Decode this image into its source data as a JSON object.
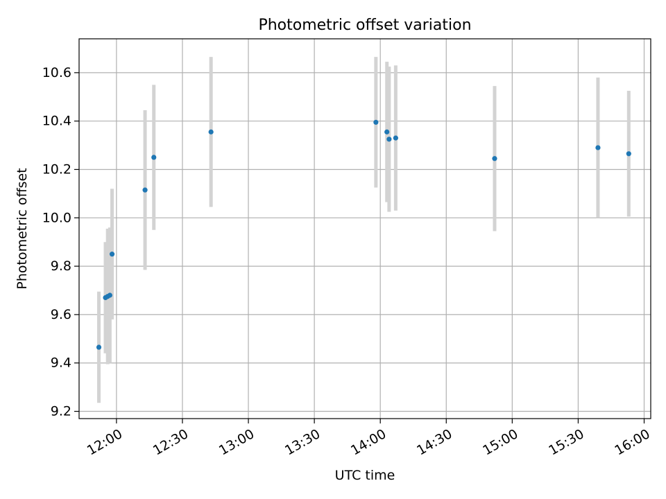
{
  "chart_data": {
    "type": "scatter",
    "title": "Photometric offset variation",
    "xlabel": "UTC time",
    "ylabel": "Photometric offset",
    "xlim": [
      "11:43",
      "16:03"
    ],
    "ylim": [
      9.17,
      10.74
    ],
    "grid": true,
    "x_ticks": [
      "12:00",
      "12:30",
      "13:00",
      "13:30",
      "14:00",
      "14:30",
      "15:00",
      "15:30",
      "16:00"
    ],
    "y_ticks": [
      9.2,
      9.4,
      9.6,
      9.8,
      10.0,
      10.2,
      10.4,
      10.6
    ],
    "series": [
      {
        "point_color": "#1f77b4",
        "errorbar_color": "#d3d3d3",
        "points": [
          {
            "x": "11:52",
            "y": 9.465,
            "err": 0.23
          },
          {
            "x": "11:55",
            "y": 9.67,
            "err": 0.23
          },
          {
            "x": "11:56",
            "y": 9.675,
            "err": 0.28
          },
          {
            "x": "11:57",
            "y": 9.68,
            "err": 0.28
          },
          {
            "x": "11:58",
            "y": 9.85,
            "err": 0.27
          },
          {
            "x": "12:13",
            "y": 10.115,
            "err": 0.33
          },
          {
            "x": "12:17",
            "y": 10.25,
            "err": 0.3
          },
          {
            "x": "12:43",
            "y": 10.355,
            "err": 0.31
          },
          {
            "x": "13:58",
            "y": 10.395,
            "err": 0.27
          },
          {
            "x": "14:03",
            "y": 10.355,
            "err": 0.29
          },
          {
            "x": "14:04",
            "y": 10.325,
            "err": 0.3
          },
          {
            "x": "14:07",
            "y": 10.33,
            "err": 0.3
          },
          {
            "x": "14:52",
            "y": 10.245,
            "err": 0.3
          },
          {
            "x": "15:39",
            "y": 10.29,
            "err": 0.29
          },
          {
            "x": "15:53",
            "y": 10.265,
            "err": 0.26
          }
        ]
      }
    ]
  }
}
